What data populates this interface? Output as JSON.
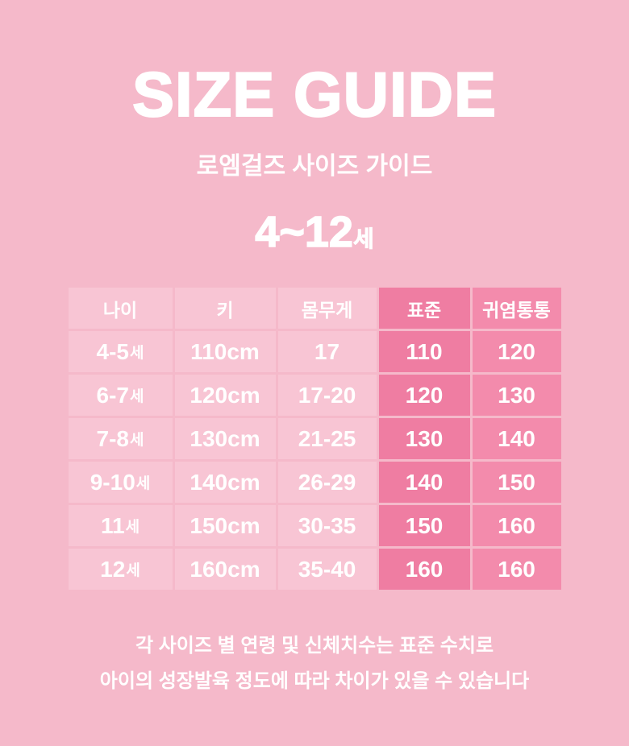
{
  "theme": {
    "bg": "#f5b9ca",
    "cell_light": "#f8c5d4",
    "cell_standard": "#ef7da2",
    "cell_chubby": "#f38bac",
    "text": "#ffffff"
  },
  "header": {
    "title": "SIZE GUIDE",
    "subtitle": "로엠걸즈 사이즈 가이드",
    "age_range": "4~12",
    "age_unit": "세"
  },
  "table": {
    "columns": [
      {
        "label": "나이"
      },
      {
        "label": "키"
      },
      {
        "label": "몸무게"
      },
      {
        "label": "표준"
      },
      {
        "label": "귀염통통"
      }
    ],
    "rows": [
      {
        "age": "4-5",
        "age_unit": "세",
        "height": "110cm",
        "weight": "17",
        "standard": "110",
        "chubby": "120"
      },
      {
        "age": "6-7",
        "age_unit": "세",
        "height": "120cm",
        "weight": "17-20",
        "standard": "120",
        "chubby": "130"
      },
      {
        "age": "7-8",
        "age_unit": "세",
        "height": "130cm",
        "weight": "21-25",
        "standard": "130",
        "chubby": "140"
      },
      {
        "age": "9-10",
        "age_unit": "세",
        "height": "140cm",
        "weight": "26-29",
        "standard": "140",
        "chubby": "150"
      },
      {
        "age": "11",
        "age_unit": "세",
        "height": "150cm",
        "weight": "30-35",
        "standard": "150",
        "chubby": "160"
      },
      {
        "age": "12",
        "age_unit": "세",
        "height": "160cm",
        "weight": "35-40",
        "standard": "160",
        "chubby": "160"
      }
    ]
  },
  "footer": {
    "line1": "각 사이즈 별 연령 및 신체치수는 표준 수치로",
    "line2": "아이의 성장발육 정도에 따라 차이가 있을 수 있습니다"
  },
  "chart_data": {
    "type": "table",
    "title": "SIZE GUIDE — 로엠걸즈 사이즈 가이드 (4~12세)",
    "columns": [
      "나이",
      "키",
      "몸무게",
      "표준",
      "귀염통통"
    ],
    "rows": [
      [
        "4-5세",
        "110cm",
        "17",
        "110",
        "120"
      ],
      [
        "6-7세",
        "120cm",
        "17-20",
        "120",
        "130"
      ],
      [
        "7-8세",
        "130cm",
        "21-25",
        "130",
        "140"
      ],
      [
        "9-10세",
        "140cm",
        "26-29",
        "140",
        "150"
      ],
      [
        "11세",
        "150cm",
        "30-35",
        "150",
        "160"
      ],
      [
        "12세",
        "160cm",
        "35-40",
        "160",
        "160"
      ]
    ],
    "highlighted_columns": [
      "표준",
      "귀염통통"
    ],
    "notes": [
      "각 사이즈 별 연령 및 신체치수는 표준 수치로",
      "아이의 성장발육 정도에 따라 차이가 있을 수 있습니다"
    ]
  }
}
